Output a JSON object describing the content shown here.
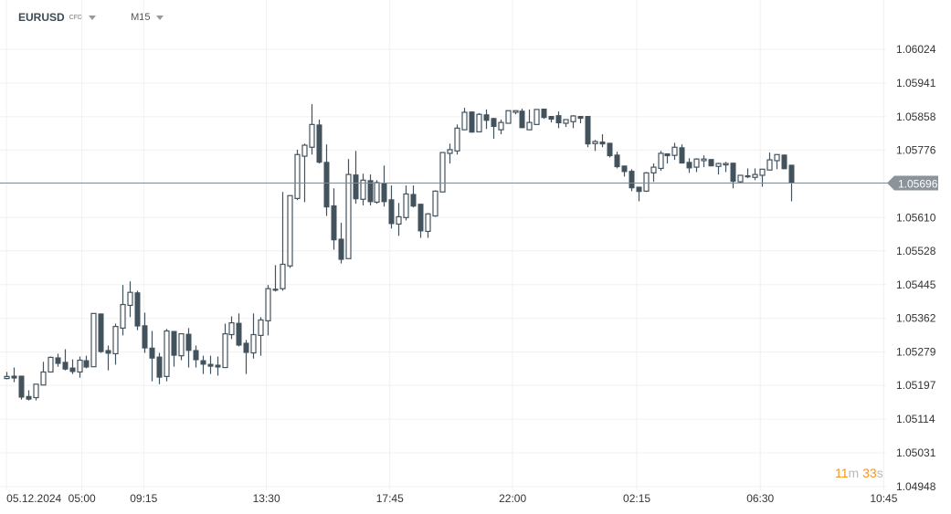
{
  "header": {
    "symbol": "EURUSD",
    "instrument_type": "CFD",
    "timeframe": "M15"
  },
  "countdown": {
    "minutes": "11",
    "m_unit": "m",
    "seconds": "33",
    "s_unit": "s"
  },
  "colors": {
    "candle": "#43535e",
    "current_price_line": "#7d8a91",
    "current_price_label_bg": "#8a949a",
    "countdown": "#f7931e"
  },
  "chart_data": {
    "type": "candlestick",
    "title": "",
    "ylim": [
      1.04948,
      1.06024
    ],
    "grid": true,
    "current_price": 1.05696,
    "y_ticks": [
      "1.06024",
      "1.05941",
      "1.05858",
      "1.05776",
      "1.05610",
      "1.05528",
      "1.05445",
      "1.05362",
      "1.05279",
      "1.05197",
      "1.05114",
      "1.05031",
      "1.04948"
    ],
    "x_ticks": [
      {
        "label": "05.12.2024",
        "at_bar": 3.8
      },
      {
        "label": "05:00",
        "at_bar": 10.4
      },
      {
        "label": "09:15",
        "at_bar": 18.9
      },
      {
        "label": "13:30",
        "at_bar": 35.8
      },
      {
        "label": "17:45",
        "at_bar": 52.8
      },
      {
        "label": "22:00",
        "at_bar": 69.7
      },
      {
        "label": "02:15",
        "at_bar": 86.8
      },
      {
        "label": "06:30",
        "at_bar": 103.8
      },
      {
        "label": "10:45",
        "at_bar": 120.8
      }
    ],
    "ohlc": [
      [
        1.05214,
        1.0523,
        1.05212,
        1.05219
      ],
      [
        1.05221,
        1.05241,
        1.05205,
        1.05214
      ],
      [
        1.05221,
        1.05221,
        1.05162,
        1.05167
      ],
      [
        1.05171,
        1.05185,
        1.0516,
        1.05162
      ],
      [
        1.05167,
        1.052,
        1.0516,
        1.052
      ],
      [
        1.05198,
        1.05255,
        1.05198,
        1.0523
      ],
      [
        1.0523,
        1.05268,
        1.0523,
        1.05266
      ],
      [
        1.05266,
        1.05275,
        1.05243,
        1.0525
      ],
      [
        1.05255,
        1.05286,
        1.05234,
        1.05236
      ],
      [
        1.05241,
        1.05261,
        1.05225,
        1.0523
      ],
      [
        1.0523,
        1.05268,
        1.05216,
        1.05259
      ],
      [
        1.05259,
        1.0527,
        1.05239,
        1.05241
      ],
      [
        1.05243,
        1.05374,
        1.05243,
        1.05374
      ],
      [
        1.05374,
        1.05374,
        1.05277,
        1.05279
      ],
      [
        1.05284,
        1.05295,
        1.05234,
        1.05275
      ],
      [
        1.05275,
        1.05349,
        1.05248,
        1.05342
      ],
      [
        1.05338,
        1.05444,
        1.0532,
        1.05396
      ],
      [
        1.05394,
        1.05453,
        1.05365,
        1.05426
      ],
      [
        1.05426,
        1.0543,
        1.05333,
        1.05342
      ],
      [
        1.05345,
        1.05376,
        1.05277,
        1.05288
      ],
      [
        1.0529,
        1.05331,
        1.05207,
        1.05263
      ],
      [
        1.05268,
        1.05277,
        1.052,
        1.05216
      ],
      [
        1.05219,
        1.05336,
        1.05207,
        1.05331
      ],
      [
        1.05331,
        1.05331,
        1.05243,
        1.0527
      ],
      [
        1.0527,
        1.05324,
        1.05259,
        1.05324
      ],
      [
        1.05324,
        1.05338,
        1.05241,
        1.05282
      ],
      [
        1.05284,
        1.05295,
        1.05241,
        1.05259
      ],
      [
        1.05259,
        1.0527,
        1.05225,
        1.05248
      ],
      [
        1.0525,
        1.0527,
        1.05225,
        1.05243
      ],
      [
        1.05248,
        1.05268,
        1.05221,
        1.05241
      ],
      [
        1.05241,
        1.05349,
        1.05241,
        1.05324
      ],
      [
        1.05322,
        1.05367,
        1.05311,
        1.05351
      ],
      [
        1.05351,
        1.05374,
        1.05293,
        1.05295
      ],
      [
        1.05302,
        1.05309,
        1.05225,
        1.05277
      ],
      [
        1.05277,
        1.05374,
        1.05263,
        1.05322
      ],
      [
        1.0532,
        1.05365,
        1.0527,
        1.05358
      ],
      [
        1.05356,
        1.05444,
        1.0532,
        1.05435
      ],
      [
        1.05435,
        1.05493,
        1.05428,
        1.0543
      ],
      [
        1.05435,
        1.05673,
        1.0543,
        1.05495
      ],
      [
        1.05491,
        1.05664,
        1.05486,
        1.05664
      ],
      [
        1.05657,
        1.05777,
        1.05653,
        1.05765
      ],
      [
        1.05761,
        1.05792,
        1.05648,
        1.05788
      ],
      [
        1.05783,
        1.05889,
        1.05765,
        1.05839
      ],
      [
        1.05839,
        1.05851,
        1.05743,
        1.05745
      ],
      [
        1.05747,
        1.0579,
        1.05614,
        1.05635
      ],
      [
        1.0564,
        1.05682,
        1.05531,
        1.05554
      ],
      [
        1.05558,
        1.05597,
        1.05497,
        1.05506
      ],
      [
        1.05509,
        1.05754,
        1.05509,
        1.05716
      ],
      [
        1.05716,
        1.05774,
        1.05644,
        1.05655
      ],
      [
        1.05655,
        1.05718,
        1.0564,
        1.05702
      ],
      [
        1.05702,
        1.05716,
        1.0564,
        1.05648
      ],
      [
        1.05648,
        1.05702,
        1.05644,
        1.05696
      ],
      [
        1.05696,
        1.05738,
        1.05637,
        1.05648
      ],
      [
        1.05655,
        1.05689,
        1.05583,
        1.05594
      ],
      [
        1.05594,
        1.05646,
        1.05565,
        1.05612
      ],
      [
        1.0561,
        1.05689,
        1.05603,
        1.05668
      ],
      [
        1.05668,
        1.05689,
        1.05635,
        1.05637
      ],
      [
        1.05644,
        1.05644,
        1.0556,
        1.05576
      ],
      [
        1.05576,
        1.05621,
        1.0556,
        1.05619
      ],
      [
        1.05614,
        1.05677,
        1.05612,
        1.05675
      ],
      [
        1.05673,
        1.0577,
        1.05673,
        1.0577
      ],
      [
        1.05768,
        1.05792,
        1.05743,
        1.05777
      ],
      [
        1.05774,
        1.05839,
        1.05765,
        1.0583
      ],
      [
        1.05826,
        1.0588,
        1.05826,
        1.05869
      ],
      [
        1.05871,
        1.05871,
        1.05819,
        1.05819
      ],
      [
        1.05821,
        1.05867,
        1.05821,
        1.05864
      ],
      [
        1.05864,
        1.05876,
        1.05828,
        1.05848
      ],
      [
        1.05855,
        1.05855,
        1.05804,
        1.05833
      ],
      [
        1.05826,
        1.05851,
        1.05815,
        1.05844
      ],
      [
        1.05842,
        1.05873,
        1.05842,
        1.05873
      ],
      [
        1.05869,
        1.05873,
        1.05864,
        1.05873
      ],
      [
        1.05873,
        1.05878,
        1.0583,
        1.0583
      ],
      [
        1.05826,
        1.05876,
        1.05826,
        1.05844
      ],
      [
        1.05839,
        1.05876,
        1.05839,
        1.05876
      ],
      [
        1.05878,
        1.05878,
        1.05853,
        1.05855
      ],
      [
        1.0586,
        1.0586,
        1.05844,
        1.05851
      ],
      [
        1.05862,
        1.05871,
        1.0583,
        1.05842
      ],
      [
        1.05842,
        1.05851,
        1.05833,
        1.05851
      ],
      [
        1.05846,
        1.05862,
        1.0583,
        1.0586
      ],
      [
        1.0586,
        1.0586,
        1.05842,
        1.05853
      ],
      [
        1.0586,
        1.0586,
        1.05783,
        1.0579
      ],
      [
        1.05792,
        1.05801,
        1.05774,
        1.05797
      ],
      [
        1.05797,
        1.05815,
        1.05783,
        1.0579
      ],
      [
        1.05794,
        1.05794,
        1.05758,
        1.05761
      ],
      [
        1.05765,
        1.05772,
        1.05731,
        1.05734
      ],
      [
        1.05738,
        1.05738,
        1.05711,
        1.05722
      ],
      [
        1.05725,
        1.05729,
        1.05675,
        1.05682
      ],
      [
        1.05686,
        1.05686,
        1.0565,
        1.05673
      ],
      [
        1.05675,
        1.05722,
        1.05673,
        1.0572
      ],
      [
        1.0572,
        1.05743,
        1.05698,
        1.05734
      ],
      [
        1.05731,
        1.05774,
        1.05725,
        1.05768
      ],
      [
        1.05768,
        1.05768,
        1.05743,
        1.05761
      ],
      [
        1.05763,
        1.05794,
        1.05752,
        1.05783
      ],
      [
        1.05783,
        1.0579,
        1.05743,
        1.05743
      ],
      [
        1.05747,
        1.05756,
        1.0572,
        1.05731
      ],
      [
        1.05734,
        1.05756,
        1.05722,
        1.05754
      ],
      [
        1.0575,
        1.05763,
        1.05734,
        1.05754
      ],
      [
        1.05754,
        1.05754,
        1.05736,
        1.05736
      ],
      [
        1.05736,
        1.05745,
        1.05716,
        1.05743
      ],
      [
        1.0574,
        1.05747,
        1.05722,
        1.05743
      ],
      [
        1.05745,
        1.05745,
        1.05682,
        1.05698
      ],
      [
        1.05698,
        1.05714,
        1.05696,
        1.05714
      ],
      [
        1.05714,
        1.05731,
        1.05707,
        1.05709
      ],
      [
        1.05709,
        1.05731,
        1.05702,
        1.05716
      ],
      [
        1.05714,
        1.05729,
        1.05686,
        1.05729
      ],
      [
        1.05727,
        1.0577,
        1.05727,
        1.05752
      ],
      [
        1.0575,
        1.05765,
        1.05729,
        1.05765
      ],
      [
        1.05765,
        1.05765,
        1.05729,
        1.05729
      ],
      [
        1.0574,
        1.0574,
        1.0565,
        1.05696
      ]
    ]
  }
}
